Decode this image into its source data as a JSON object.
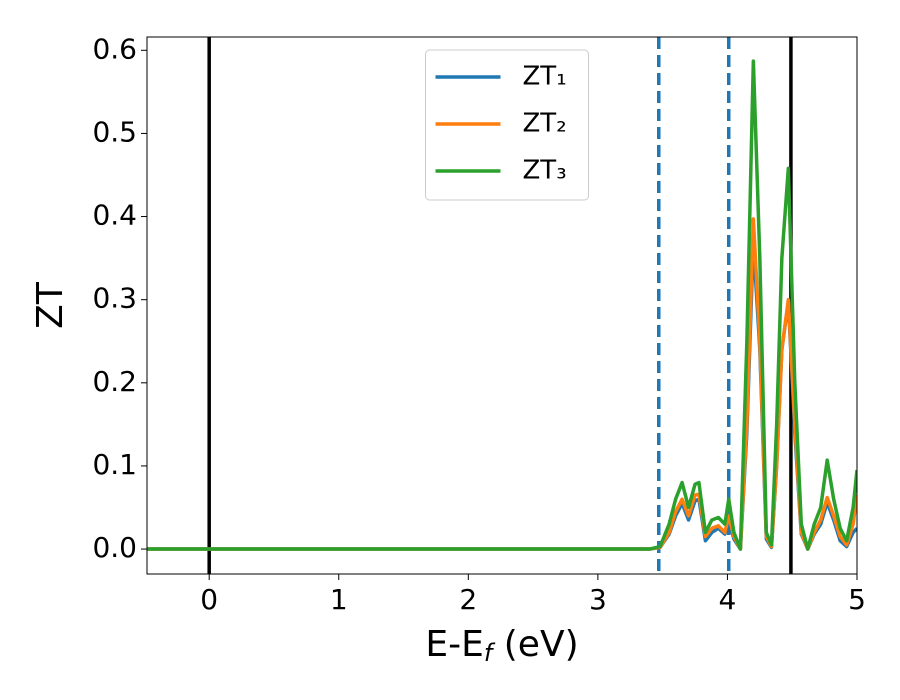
{
  "chart_data": {
    "type": "line",
    "xlabel": [
      "E-E",
      "f",
      " (eV)"
    ],
    "ylabel": "ZT",
    "x": [
      -0.48,
      3.4,
      3.48,
      3.55,
      3.6,
      3.65,
      3.7,
      3.75,
      3.78,
      3.83,
      3.88,
      3.93,
      3.98,
      4.01,
      4.05,
      4.1,
      4.15,
      4.2,
      4.25,
      4.3,
      4.34,
      4.38,
      4.42,
      4.47,
      4.52,
      4.57,
      4.62,
      4.67,
      4.72,
      4.77,
      4.82,
      4.87,
      4.92,
      4.97,
      5.0
    ],
    "series": [
      {
        "name": "ZT₁",
        "color": "#1f77b4",
        "values": [
          0,
          0,
          0.002,
          0.018,
          0.04,
          0.055,
          0.035,
          0.058,
          0.06,
          0.01,
          0.02,
          0.025,
          0.018,
          0.035,
          0.012,
          0,
          0.14,
          0.37,
          0.24,
          0.012,
          0.002,
          0.1,
          0.24,
          0.298,
          0.14,
          0.018,
          0,
          0.018,
          0.03,
          0.056,
          0.035,
          0.01,
          0.003,
          0.02,
          0.025
        ]
      },
      {
        "name": "ZT₂",
        "color": "#ff7f0e",
        "values": [
          0,
          0,
          0.002,
          0.02,
          0.045,
          0.06,
          0.04,
          0.065,
          0.066,
          0.015,
          0.025,
          0.028,
          0.02,
          0.04,
          0.015,
          0,
          0.15,
          0.397,
          0.25,
          0.015,
          0.003,
          0.1,
          0.24,
          0.3,
          0.15,
          0.02,
          0,
          0.02,
          0.035,
          0.062,
          0.04,
          0.015,
          0.005,
          0.03,
          0.065
        ]
      },
      {
        "name": "ZT₃",
        "color": "#2ca02c",
        "values": [
          0,
          0,
          0.003,
          0.03,
          0.06,
          0.08,
          0.05,
          0.078,
          0.08,
          0.02,
          0.035,
          0.038,
          0.03,
          0.06,
          0.02,
          0,
          0.25,
          0.587,
          0.35,
          0.02,
          0.005,
          0.15,
          0.35,
          0.458,
          0.2,
          0.03,
          0,
          0.03,
          0.05,
          0.107,
          0.06,
          0.025,
          0.01,
          0.05,
          0.095
        ]
      }
    ],
    "vlines": [
      {
        "x": 0,
        "color": "#000000",
        "style": "solid"
      },
      {
        "x": 3.47,
        "color": "#1f77b4",
        "style": "dashed"
      },
      {
        "x": 4.01,
        "color": "#1f77b4",
        "style": "dashed"
      },
      {
        "x": 4.49,
        "color": "#000000",
        "style": "solid"
      }
    ],
    "xlim": [
      -0.48,
      5.0
    ],
    "ylim": [
      -0.03,
      0.616
    ],
    "xticks": [
      0,
      1,
      2,
      3,
      4,
      5
    ],
    "yticks": [
      {
        "value": 0,
        "label": "0.0"
      },
      0.1,
      0.2,
      0.3,
      0.4,
      0.5,
      0.6
    ],
    "legend": "upper center"
  }
}
